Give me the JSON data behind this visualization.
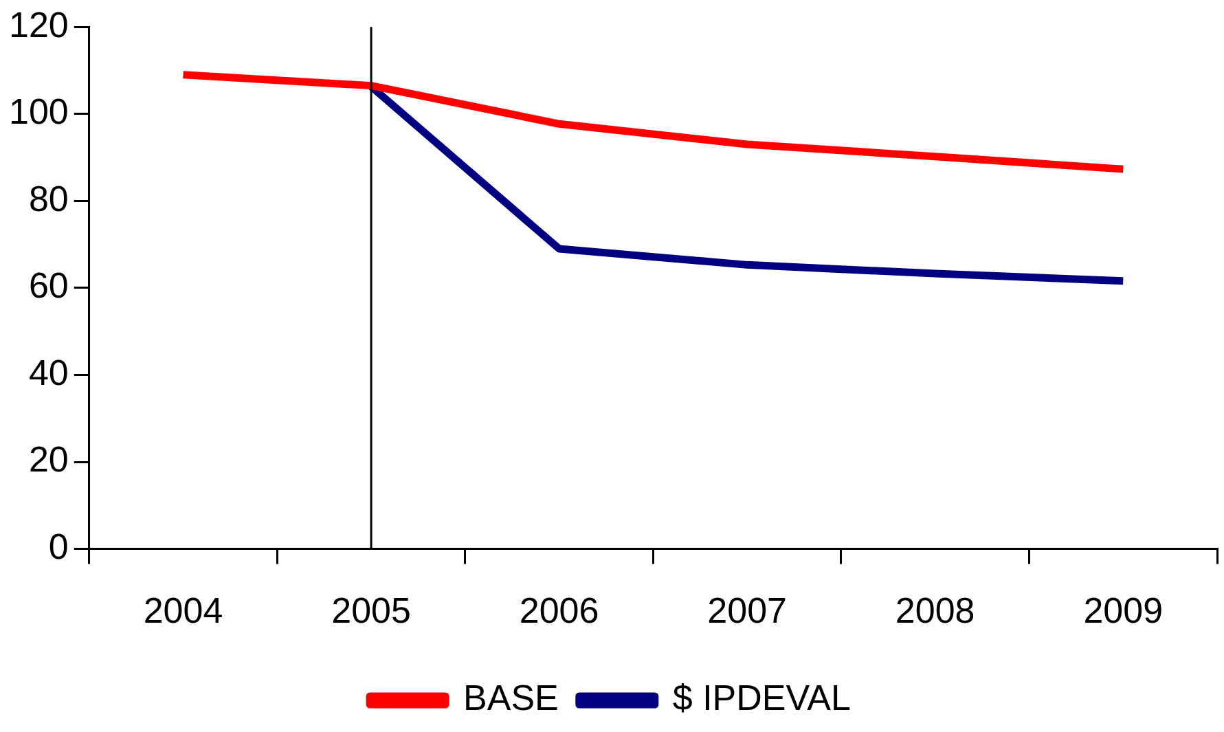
{
  "chart_data": {
    "type": "line",
    "categories": [
      "2004",
      "2005",
      "2006",
      "2007",
      "2008",
      "2009"
    ],
    "series": [
      {
        "name": "BASE",
        "color": "#ff0000",
        "values": [
          109,
          106.5,
          97.7,
          93,
          90.2,
          87.3
        ]
      },
      {
        "name": "$ IPDEVAL",
        "color": "#000080",
        "values": [
          null,
          106.3,
          69,
          65.3,
          63.3,
          61.6
        ]
      }
    ],
    "ylim": [
      0,
      120
    ],
    "yticks": [
      0,
      20,
      40,
      60,
      80,
      100,
      120
    ],
    "grid": false,
    "legend": "bottom",
    "marker": "none",
    "line_style": "solid",
    "ref_lines": [
      {
        "axis": "x",
        "value": "2005",
        "color": "#000000"
      }
    ]
  }
}
